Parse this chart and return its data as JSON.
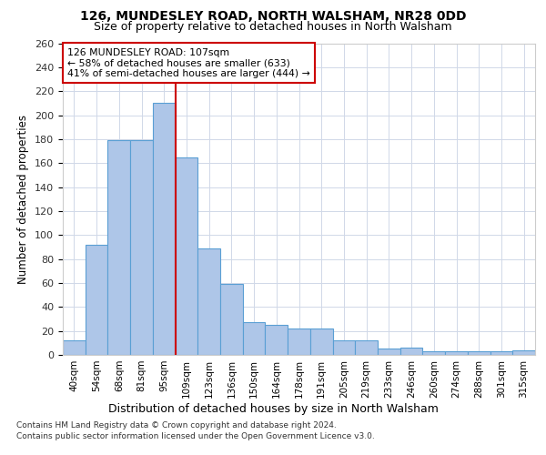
{
  "title1": "126, MUNDESLEY ROAD, NORTH WALSHAM, NR28 0DD",
  "title2": "Size of property relative to detached houses in North Walsham",
  "xlabel": "Distribution of detached houses by size in North Walsham",
  "ylabel": "Number of detached properties",
  "categories": [
    "40sqm",
    "54sqm",
    "68sqm",
    "81sqm",
    "95sqm",
    "109sqm",
    "123sqm",
    "136sqm",
    "150sqm",
    "164sqm",
    "178sqm",
    "191sqm",
    "205sqm",
    "219sqm",
    "233sqm",
    "246sqm",
    "260sqm",
    "274sqm",
    "288sqm",
    "301sqm",
    "315sqm"
  ],
  "values": [
    12,
    92,
    179,
    179,
    210,
    165,
    89,
    59,
    27,
    25,
    22,
    22,
    12,
    12,
    5,
    6,
    3,
    3,
    3,
    3,
    4
  ],
  "bar_color": "#aec6e8",
  "bar_edge_color": "#5a9fd4",
  "vline_index": 5,
  "vline_color": "#cc0000",
  "annotation_line1": "126 MUNDESLEY ROAD: 107sqm",
  "annotation_line2": "← 58% of detached houses are smaller (633)",
  "annotation_line3": "41% of semi-detached houses are larger (444) →",
  "annotation_box_color": "#ffffff",
  "annotation_box_edge": "#cc0000",
  "ylim": [
    0,
    260
  ],
  "yticks": [
    0,
    20,
    40,
    60,
    80,
    100,
    120,
    140,
    160,
    180,
    200,
    220,
    240,
    260
  ],
  "footer1": "Contains HM Land Registry data © Crown copyright and database right 2024.",
  "footer2": "Contains public sector information licensed under the Open Government Licence v3.0.",
  "bg_color": "#ffffff",
  "grid_color": "#d0d8e8"
}
